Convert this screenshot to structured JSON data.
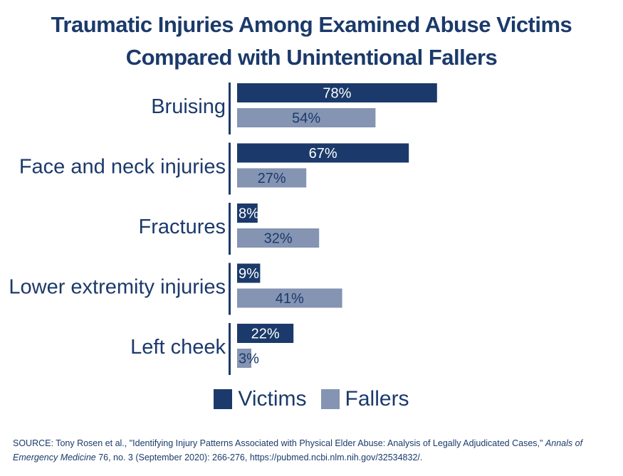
{
  "chart_data": {
    "type": "bar",
    "orientation": "horizontal",
    "title_lines": [
      "Traumatic Injuries Among Examined Abuse Victims",
      "Compared with Unintentional Fallers"
    ],
    "categories": [
      "Bruising",
      "Face and neck injuries",
      "Fractures",
      "Lower extremity injuries",
      "Left cheek"
    ],
    "series": [
      {
        "name": "Victims",
        "values": [
          78,
          67,
          8,
          9,
          22
        ],
        "color": "#1b3a6b"
      },
      {
        "name": "Fallers",
        "values": [
          54,
          27,
          32,
          41,
          3
        ],
        "color": "#8494b2"
      }
    ],
    "value_suffix": "%",
    "xlim": [
      0,
      100
    ],
    "grid": false,
    "legend": "bottom-center"
  },
  "source": {
    "prefix": "SOURCE: Tony Rosen et al., \"Identifying Injury Patterns Associated with Physical Elder Abuse: Analysis of Legally Adjudicated Cases,\" ",
    "journal": "Annals of Emergency Medicine",
    "suffix": " 76, no. 3 (September 2020): 266-276, https://pubmed.ncbi.nlm.nih.gov/32534832/."
  }
}
